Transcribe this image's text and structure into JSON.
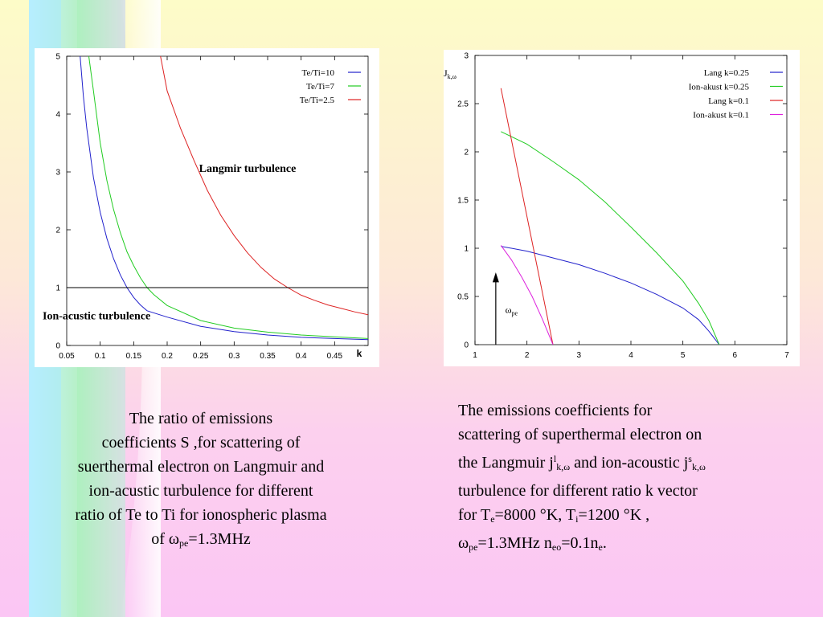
{
  "colors": {
    "blue": "#2222cc",
    "green": "#22cc22",
    "red": "#dd2222",
    "magenta": "#dd22dd",
    "black": "#000000"
  },
  "chart_data": [
    {
      "type": "line",
      "title": "",
      "xlabel": "k",
      "ylabel": "",
      "xlim": [
        0.05,
        0.5
      ],
      "ylim": [
        0,
        5
      ],
      "x_ticks": [
        "0.05",
        "0.1",
        "0.15",
        "0.2",
        "0.25",
        "0.3",
        "0.35",
        "0.4",
        "0.45"
      ],
      "y_ticks": [
        "0",
        "1",
        "2",
        "3",
        "4",
        "5"
      ],
      "legend_position": "top-right",
      "series": [
        {
          "name": "Te/Ti=10",
          "color": "blue",
          "points": [
            [
              0.07,
              5
            ],
            [
              0.075,
              4.3
            ],
            [
              0.08,
              3.75
            ],
            [
              0.09,
              2.9
            ],
            [
              0.1,
              2.3
            ],
            [
              0.11,
              1.85
            ],
            [
              0.12,
              1.5
            ],
            [
              0.13,
              1.22
            ],
            [
              0.14,
              1.0
            ],
            [
              0.15,
              0.83
            ],
            [
              0.16,
              0.7
            ],
            [
              0.17,
              0.6
            ],
            [
              0.2,
              0.49
            ],
            [
              0.25,
              0.33
            ],
            [
              0.3,
              0.24
            ],
            [
              0.35,
              0.18
            ],
            [
              0.4,
              0.14
            ],
            [
              0.45,
              0.12
            ],
            [
              0.5,
              0.1
            ]
          ]
        },
        {
          "name": "Te/Ti=7",
          "color": "green",
          "points": [
            [
              0.083,
              5
            ],
            [
              0.09,
              4.4
            ],
            [
              0.1,
              3.5
            ],
            [
              0.11,
              2.85
            ],
            [
              0.12,
              2.35
            ],
            [
              0.13,
              1.95
            ],
            [
              0.14,
              1.62
            ],
            [
              0.15,
              1.38
            ],
            [
              0.16,
              1.17
            ],
            [
              0.17,
              1.0
            ],
            [
              0.18,
              0.88
            ],
            [
              0.2,
              0.69
            ],
            [
              0.25,
              0.43
            ],
            [
              0.3,
              0.3
            ],
            [
              0.35,
              0.23
            ],
            [
              0.4,
              0.18
            ],
            [
              0.45,
              0.15
            ],
            [
              0.5,
              0.12
            ]
          ]
        },
        {
          "name": "Te/Ti=2.5",
          "color": "red",
          "points": [
            [
              0.19,
              5
            ],
            [
              0.2,
              4.4
            ],
            [
              0.22,
              3.75
            ],
            [
              0.24,
              3.2
            ],
            [
              0.26,
              2.68
            ],
            [
              0.28,
              2.25
            ],
            [
              0.3,
              1.9
            ],
            [
              0.32,
              1.6
            ],
            [
              0.34,
              1.35
            ],
            [
              0.36,
              1.15
            ],
            [
              0.38,
              1.0
            ],
            [
              0.4,
              0.87
            ],
            [
              0.42,
              0.78
            ],
            [
              0.44,
              0.7
            ],
            [
              0.46,
              0.64
            ],
            [
              0.48,
              0.58
            ],
            [
              0.5,
              0.53
            ]
          ]
        },
        {
          "name": "",
          "color": "black",
          "points": [
            [
              0.05,
              1
            ],
            [
              0.5,
              1
            ]
          ]
        }
      ],
      "annotations": [
        {
          "text": "Langmir turbulence",
          "x": 0.32,
          "y": 3.0
        },
        {
          "text": "Ion-acustic turbulence",
          "x": 0.05,
          "y": 0.45
        }
      ]
    },
    {
      "type": "line",
      "title": "",
      "xlabel": "",
      "ylabel": "J",
      "ylabel_sub": "k,ω",
      "xlim": [
        1,
        7
      ],
      "ylim": [
        0,
        3
      ],
      "x_ticks": [
        "1",
        "2",
        "3",
        "4",
        "5",
        "6",
        "7"
      ],
      "y_ticks": [
        "0",
        "0.5",
        "1",
        "1.5",
        "2",
        "2.5",
        "3"
      ],
      "legend_position": "top-right",
      "series": [
        {
          "name": "Lang k=0.25",
          "color": "blue",
          "points": [
            [
              1.5,
              1.02
            ],
            [
              2,
              0.97
            ],
            [
              2.5,
              0.9
            ],
            [
              3,
              0.83
            ],
            [
              3.5,
              0.74
            ],
            [
              4,
              0.64
            ],
            [
              4.5,
              0.52
            ],
            [
              5,
              0.38
            ],
            [
              5.3,
              0.26
            ],
            [
              5.5,
              0.14
            ],
            [
              5.7,
              0
            ]
          ]
        },
        {
          "name": "Ion-akust k=0.25",
          "color": "green",
          "points": [
            [
              1.5,
              2.21
            ],
            [
              2,
              2.08
            ],
            [
              2.5,
              1.9
            ],
            [
              3,
              1.71
            ],
            [
              3.5,
              1.48
            ],
            [
              4,
              1.22
            ],
            [
              4.5,
              0.95
            ],
            [
              5,
              0.66
            ],
            [
              5.3,
              0.43
            ],
            [
              5.5,
              0.25
            ],
            [
              5.7,
              0
            ]
          ]
        },
        {
          "name": "Lang k=0.1",
          "color": "red",
          "points": [
            [
              1.5,
              2.66
            ],
            [
              2.5,
              0
            ]
          ]
        },
        {
          "name": "Ion-akust k=0.1",
          "color": "magenta",
          "points": [
            [
              1.5,
              1.03
            ],
            [
              1.7,
              0.88
            ],
            [
              1.9,
              0.7
            ],
            [
              2.1,
              0.5
            ],
            [
              2.3,
              0.26
            ],
            [
              2.5,
              0
            ]
          ]
        }
      ],
      "annotations": [
        {
          "text": "ω",
          "sub": "pe",
          "x": 1.55,
          "y": 0.33
        }
      ]
    }
  ],
  "captions": {
    "left": {
      "line1": "The ratio of emissions",
      "line2": "coefficients  S ,for scattering of",
      "line3": "suerthermal electron on Langmuir and",
      "line4": "ion-acustic turbulence for different",
      "line5": "ratio of Te to Ti for ionospheric plasma",
      "line6_pre": "of ω",
      "line6_sub": "pe",
      "line6_post": "=1.3MHz"
    },
    "right": {
      "l1": "The emissions coefficients  for",
      "l2": "scattering of superthermal electron on",
      "l3_a": "the Langmuir j",
      "l3_sup1": "l",
      "l3_sub1": "k,ω",
      "l3_b": " and ion-acoustic j",
      "l3_sup2": "s",
      "l3_sub2": "k,ω",
      "l4": "turbulence for different ratio k vector",
      "l5_a": "for T",
      "l5_sub1": "e",
      "l5_b": "=8000 °K, T",
      "l5_sub2": "i",
      "l5_c": "=1200 °K ,",
      "l6_a": "ω",
      "l6_sub1": "pe",
      "l6_b": "=1.3MHz n",
      "l6_sub2": "eo",
      "l6_c": "=0.1n",
      "l6_sub3": "e",
      "l6_d": "."
    }
  }
}
